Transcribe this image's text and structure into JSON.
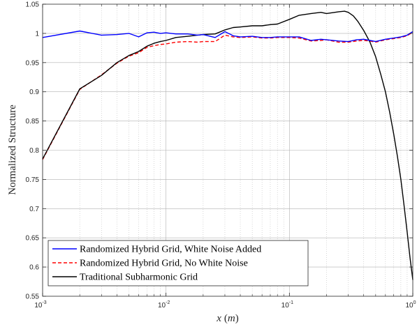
{
  "chart_data": {
    "type": "line",
    "title": "",
    "xlabel": "x",
    "xlabel_unit": "m",
    "ylabel": "Normalized Structure",
    "xscale": "log",
    "xlim": [
      0.001,
      1
    ],
    "ylim": [
      0.55,
      1.05
    ],
    "grid": "major and minor, dotted",
    "legend_position": "bottom-left",
    "y_ticks": [
      "0.55",
      "0.6",
      "0.65",
      "0.7",
      "0.75",
      "0.8",
      "0.85",
      "0.9",
      "0.95",
      "1",
      "1.05"
    ],
    "x_ticks": [
      {
        "base": "10",
        "exp": "-3",
        "value": 0.001
      },
      {
        "base": "10",
        "exp": "-2",
        "value": 0.01
      },
      {
        "base": "10",
        "exp": "-1",
        "value": 0.1
      },
      {
        "base": "10",
        "exp": "0",
        "value": 1
      }
    ],
    "series": [
      {
        "name": "Randomized Hybrid Grid, White Noise Added",
        "color": "#0000ff",
        "style": "solid",
        "x": [
          0.001,
          0.002,
          0.003,
          0.004,
          0.005,
          0.006,
          0.007,
          0.008,
          0.009,
          0.01,
          0.012,
          0.015,
          0.018,
          0.02,
          0.025,
          0.03,
          0.035,
          0.04,
          0.05,
          0.06,
          0.07,
          0.08,
          0.1,
          0.12,
          0.15,
          0.18,
          0.2,
          0.25,
          0.3,
          0.35,
          0.4,
          0.45,
          0.5,
          0.6,
          0.7,
          0.8,
          0.9,
          1.0
        ],
        "y": [
          0.993,
          1.004,
          0.997,
          0.998,
          1.0,
          0.994,
          1.001,
          1.002,
          1.0,
          1.001,
          0.999,
          0.999,
          0.997,
          0.998,
          0.993,
          1.003,
          0.996,
          0.994,
          0.995,
          0.993,
          0.993,
          0.994,
          0.994,
          0.994,
          0.988,
          0.99,
          0.989,
          0.987,
          0.986,
          0.989,
          0.99,
          0.988,
          0.986,
          0.99,
          0.992,
          0.994,
          0.997,
          1.003
        ]
      },
      {
        "name": "Randomized Hybrid Grid, No White Noise",
        "color": "#ff0000",
        "style": "dashed",
        "x": [
          0.001,
          0.002,
          0.003,
          0.004,
          0.005,
          0.006,
          0.007,
          0.008,
          0.009,
          0.01,
          0.012,
          0.015,
          0.018,
          0.02,
          0.025,
          0.03,
          0.035,
          0.04,
          0.05,
          0.06,
          0.07,
          0.08,
          0.1,
          0.12,
          0.15,
          0.18,
          0.2,
          0.25,
          0.3,
          0.35,
          0.4,
          0.45,
          0.5,
          0.6,
          0.7,
          0.8,
          0.9,
          1.0
        ],
        "y": [
          0.784,
          0.904,
          0.929,
          0.949,
          0.961,
          0.967,
          0.976,
          0.979,
          0.981,
          0.982,
          0.985,
          0.986,
          0.985,
          0.986,
          0.986,
          0.997,
          0.994,
          0.993,
          0.994,
          0.992,
          0.992,
          0.993,
          0.993,
          0.992,
          0.987,
          0.988,
          0.989,
          0.985,
          0.985,
          0.987,
          0.988,
          0.987,
          0.985,
          0.989,
          0.991,
          0.993,
          0.996,
          1.002
        ]
      },
      {
        "name": "Traditional Subharmonic Grid",
        "color": "#000000",
        "style": "solid",
        "x": [
          0.001,
          0.002,
          0.003,
          0.004,
          0.005,
          0.006,
          0.007,
          0.008,
          0.009,
          0.01,
          0.012,
          0.015,
          0.018,
          0.02,
          0.025,
          0.03,
          0.035,
          0.04,
          0.05,
          0.06,
          0.07,
          0.08,
          0.1,
          0.12,
          0.15,
          0.18,
          0.2,
          0.25,
          0.28,
          0.3,
          0.33,
          0.36,
          0.4,
          0.45,
          0.5,
          0.55,
          0.6,
          0.65,
          0.7,
          0.75,
          0.8,
          0.85,
          0.9,
          0.95,
          1.0
        ],
        "y": [
          0.785,
          0.905,
          0.928,
          0.95,
          0.962,
          0.969,
          0.978,
          0.983,
          0.986,
          0.988,
          0.993,
          0.995,
          0.997,
          0.998,
          0.999,
          1.006,
          1.01,
          1.011,
          1.013,
          1.013,
          1.015,
          1.016,
          1.024,
          1.031,
          1.034,
          1.036,
          1.034,
          1.037,
          1.038,
          1.036,
          1.03,
          1.02,
          1.005,
          0.985,
          0.96,
          0.93,
          0.9,
          0.865,
          0.828,
          0.79,
          0.75,
          0.705,
          0.66,
          0.615,
          0.578
        ]
      }
    ]
  }
}
